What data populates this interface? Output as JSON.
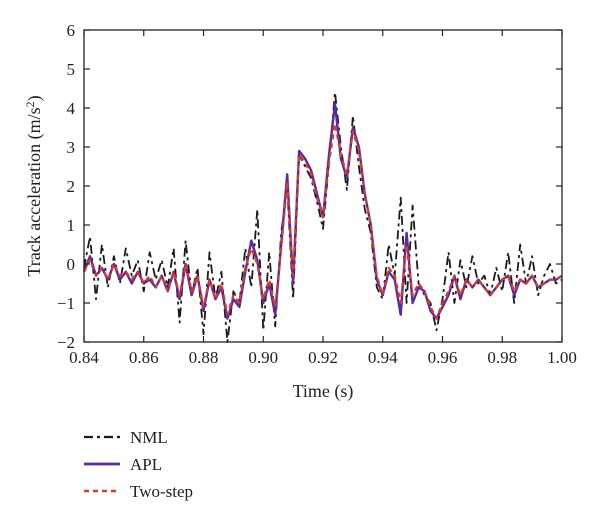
{
  "chart_data": {
    "type": "line",
    "xlabel": "Time (s)",
    "ylabel_main": "Track acceleration (m/s",
    "ylabel_sup": "2",
    "ylabel_close": ")",
    "xlim": [
      0.84,
      1.0
    ],
    "ylim": [
      -2,
      6
    ],
    "xticks": [
      0.84,
      0.86,
      0.88,
      0.9,
      0.92,
      0.94,
      0.96,
      0.98,
      1.0
    ],
    "xtick_labels": [
      "0.84",
      "0.86",
      "0.88",
      "0.90",
      "0.92",
      "0.94",
      "0.96",
      "0.98",
      "1.00"
    ],
    "yticks": [
      -2,
      -1,
      0,
      1,
      2,
      3,
      4,
      5,
      6
    ],
    "ytick_labels": [
      "−2",
      "−1",
      "0",
      "1",
      "2",
      "3",
      "4",
      "5",
      "6"
    ],
    "grid": false,
    "legend_position": "bottom-left-outside",
    "series": [
      {
        "name": "NML",
        "color": "#1a1a1a",
        "style": "dashdot",
        "x": [
          0.84,
          0.842,
          0.844,
          0.846,
          0.848,
          0.85,
          0.852,
          0.854,
          0.856,
          0.858,
          0.86,
          0.862,
          0.864,
          0.866,
          0.868,
          0.87,
          0.872,
          0.874,
          0.876,
          0.878,
          0.88,
          0.882,
          0.884,
          0.886,
          0.888,
          0.89,
          0.892,
          0.894,
          0.896,
          0.898,
          0.9,
          0.902,
          0.904,
          0.906,
          0.908,
          0.91,
          0.912,
          0.914,
          0.916,
          0.918,
          0.92,
          0.922,
          0.924,
          0.926,
          0.928,
          0.93,
          0.932,
          0.934,
          0.936,
          0.938,
          0.94,
          0.942,
          0.944,
          0.946,
          0.948,
          0.95,
          0.952,
          0.954,
          0.956,
          0.958,
          0.96,
          0.962,
          0.964,
          0.966,
          0.968,
          0.97,
          0.972,
          0.974,
          0.976,
          0.978,
          0.98,
          0.982,
          0.984,
          0.986,
          0.988,
          0.99,
          0.992,
          0.994,
          0.996,
          0.998,
          1.0
        ],
        "y": [
          -0.1,
          0.7,
          -0.9,
          0.5,
          -0.6,
          0.2,
          -0.5,
          0.4,
          -0.3,
          0.1,
          -0.7,
          0.3,
          -0.4,
          0.1,
          -0.6,
          0.4,
          -1.5,
          0.6,
          -0.8,
          -0.1,
          -1.8,
          0.3,
          -0.9,
          -0.2,
          -2.0,
          -0.7,
          -1.0,
          0.4,
          -0.6,
          1.4,
          -1.7,
          0.3,
          -1.6,
          0.8,
          2.0,
          -0.9,
          2.8,
          2.5,
          2.2,
          1.6,
          0.9,
          2.6,
          4.4,
          3.0,
          1.9,
          3.8,
          2.5,
          1.4,
          0.8,
          -0.6,
          -0.9,
          0.5,
          -0.3,
          1.7,
          -1.0,
          1.5,
          -0.5,
          -0.8,
          -1.0,
          -1.7,
          -0.9,
          0.3,
          -1.0,
          0.1,
          -0.6,
          0.2,
          -0.5,
          -0.3,
          -0.8,
          -0.1,
          -0.7,
          0.3,
          -1.0,
          0.5,
          -0.5,
          0.2,
          -0.8,
          -0.3,
          0.0,
          -0.5,
          -0.4
        ]
      },
      {
        "name": "APL",
        "color": "#5a2aa0",
        "style": "solid",
        "x": [
          0.84,
          0.842,
          0.844,
          0.846,
          0.848,
          0.85,
          0.852,
          0.854,
          0.856,
          0.858,
          0.86,
          0.862,
          0.864,
          0.866,
          0.868,
          0.87,
          0.872,
          0.874,
          0.876,
          0.878,
          0.88,
          0.882,
          0.884,
          0.886,
          0.888,
          0.89,
          0.892,
          0.894,
          0.896,
          0.898,
          0.9,
          0.902,
          0.904,
          0.906,
          0.908,
          0.91,
          0.912,
          0.914,
          0.916,
          0.918,
          0.92,
          0.922,
          0.924,
          0.926,
          0.928,
          0.93,
          0.932,
          0.934,
          0.936,
          0.938,
          0.94,
          0.942,
          0.944,
          0.946,
          0.948,
          0.95,
          0.952,
          0.954,
          0.956,
          0.958,
          0.96,
          0.962,
          0.964,
          0.966,
          0.968,
          0.97,
          0.972,
          0.974,
          0.976,
          0.978,
          0.98,
          0.982,
          0.984,
          0.986,
          0.988,
          0.99,
          0.992,
          0.994,
          0.996,
          0.998,
          1.0
        ],
        "y": [
          -0.2,
          0.2,
          -0.3,
          -0.1,
          -0.4,
          0.0,
          -0.4,
          -0.2,
          -0.5,
          -0.2,
          -0.5,
          -0.4,
          -0.6,
          -0.3,
          -0.7,
          -0.2,
          -0.9,
          0.0,
          -0.8,
          -0.3,
          -1.2,
          -0.4,
          -0.9,
          -0.6,
          -1.4,
          -0.9,
          -1.1,
          -0.2,
          0.6,
          0.1,
          -1.0,
          -0.5,
          -1.3,
          0.5,
          2.3,
          -0.5,
          2.9,
          2.7,
          2.4,
          1.8,
          1.2,
          2.8,
          4.1,
          2.7,
          2.2,
          3.5,
          3.0,
          1.8,
          1.0,
          -0.4,
          -0.8,
          -0.2,
          -0.4,
          -1.3,
          0.8,
          -1.0,
          -0.6,
          -0.7,
          -1.2,
          -1.4,
          -1.1,
          -0.8,
          -0.3,
          -0.9,
          -0.4,
          -0.6,
          -0.4,
          -0.6,
          -0.8,
          -0.6,
          -0.4,
          -0.3,
          -0.8,
          -0.4,
          -0.5,
          -0.3,
          -0.6,
          -0.5,
          -0.4,
          -0.4,
          -0.3
        ]
      },
      {
        "name": "Two-step",
        "color": "#e03a1e",
        "style": "dashed",
        "x": [
          0.84,
          0.842,
          0.844,
          0.846,
          0.848,
          0.85,
          0.852,
          0.854,
          0.856,
          0.858,
          0.86,
          0.862,
          0.864,
          0.866,
          0.868,
          0.87,
          0.872,
          0.874,
          0.876,
          0.878,
          0.88,
          0.882,
          0.884,
          0.886,
          0.888,
          0.89,
          0.892,
          0.894,
          0.896,
          0.898,
          0.9,
          0.902,
          0.904,
          0.906,
          0.908,
          0.91,
          0.912,
          0.914,
          0.916,
          0.918,
          0.92,
          0.922,
          0.924,
          0.926,
          0.928,
          0.93,
          0.932,
          0.934,
          0.936,
          0.938,
          0.94,
          0.942,
          0.944,
          0.946,
          0.948,
          0.95,
          0.952,
          0.954,
          0.956,
          0.958,
          0.96,
          0.962,
          0.964,
          0.966,
          0.968,
          0.97,
          0.972,
          0.974,
          0.976,
          0.978,
          0.98,
          0.982,
          0.984,
          0.986,
          0.988,
          0.99,
          0.992,
          0.994,
          0.996,
          0.998,
          1.0
        ],
        "y": [
          -0.2,
          0.1,
          -0.3,
          -0.1,
          -0.4,
          0.0,
          -0.3,
          -0.2,
          -0.4,
          -0.2,
          -0.5,
          -0.3,
          -0.6,
          -0.3,
          -0.7,
          -0.2,
          -0.8,
          0.0,
          -0.7,
          -0.3,
          -1.1,
          -0.4,
          -0.9,
          -0.5,
          -1.3,
          -0.8,
          -1.0,
          -0.1,
          0.4,
          0.0,
          -0.9,
          -0.4,
          -1.1,
          0.4,
          2.1,
          -0.3,
          2.8,
          2.6,
          2.3,
          1.7,
          1.2,
          2.6,
          3.6,
          2.8,
          2.3,
          3.4,
          2.9,
          1.8,
          1.0,
          -0.3,
          -0.8,
          -0.1,
          -0.3,
          -1.0,
          0.5,
          -0.8,
          -0.5,
          -0.7,
          -1.1,
          -1.4,
          -1.0,
          -0.7,
          -0.3,
          -0.8,
          -0.4,
          -0.6,
          -0.4,
          -0.6,
          -0.8,
          -0.6,
          -0.4,
          -0.3,
          -0.7,
          -0.4,
          -0.5,
          -0.3,
          -0.6,
          -0.5,
          -0.4,
          -0.4,
          -0.3
        ]
      }
    ]
  }
}
